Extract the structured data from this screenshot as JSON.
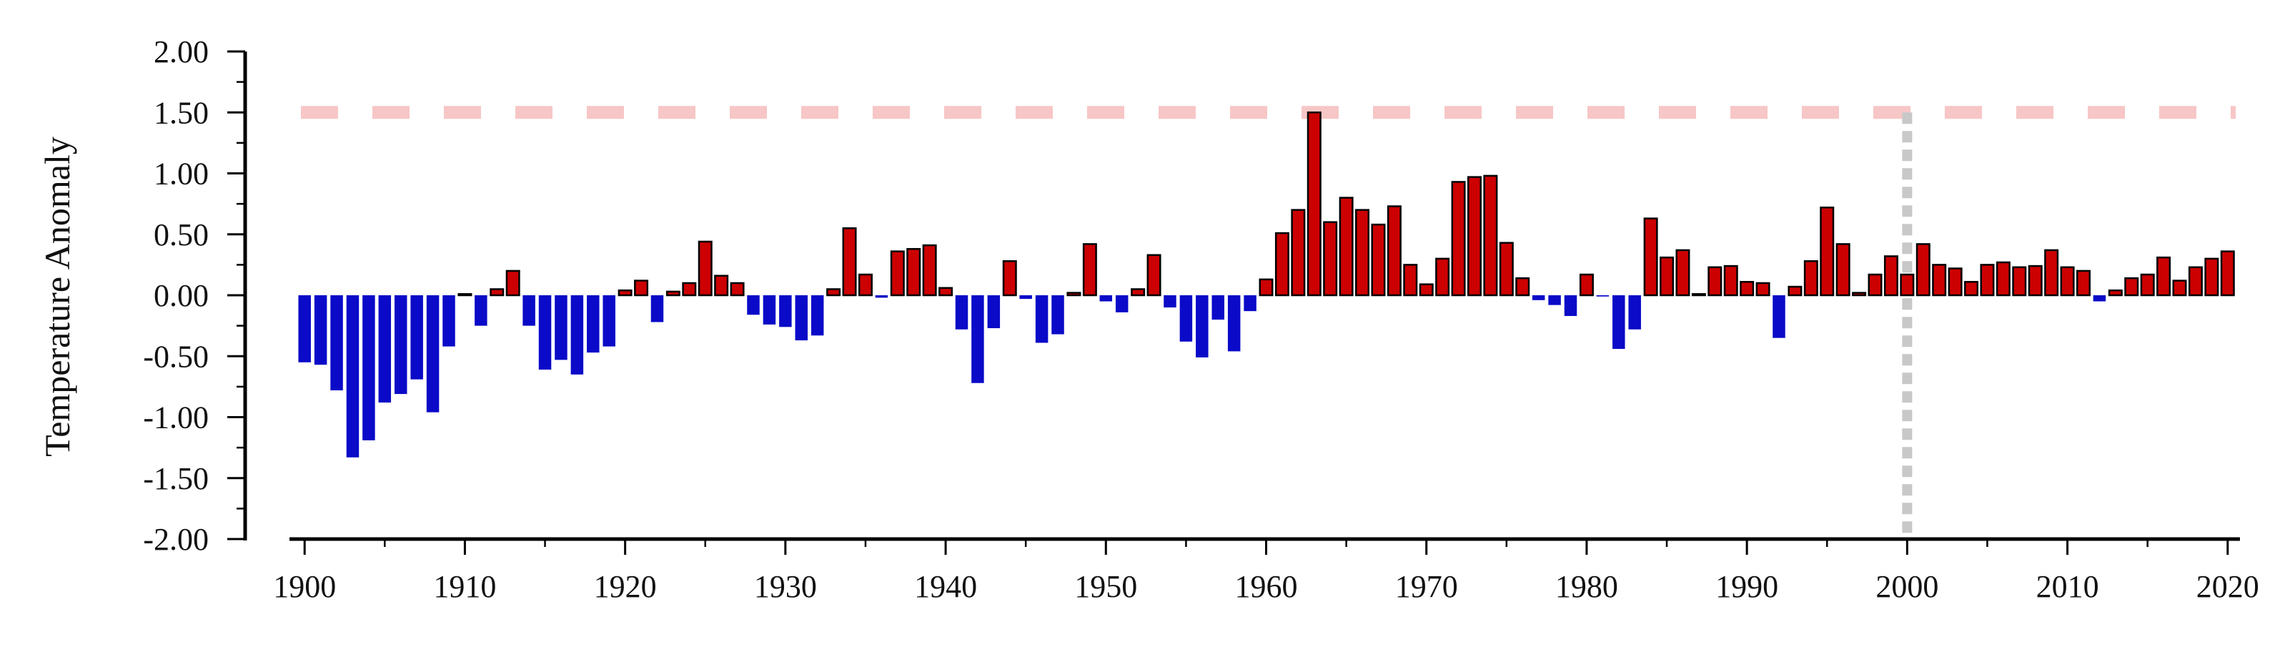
{
  "chart_data": {
    "type": "bar",
    "ylabel": "Temperature Anomaly",
    "xlabel": "",
    "title": "",
    "ylim": [
      -2.0,
      2.0
    ],
    "xlim": [
      1899.5,
      2020.5
    ],
    "y_ticks": [
      "2.00",
      "1.50",
      "1.00",
      "0.50",
      "0.00",
      "-0.50",
      "-1.00",
      "-1.50",
      "-2.00"
    ],
    "y_tick_values": [
      2.0,
      1.5,
      1.0,
      0.5,
      0.0,
      -0.5,
      -1.0,
      -1.5,
      -2.0
    ],
    "x_ticks": [
      "1900",
      "1910",
      "1920",
      "1930",
      "1940",
      "1950",
      "1960",
      "1970",
      "1980",
      "1990",
      "2000",
      "2010",
      "2020"
    ],
    "x_tick_values": [
      1900,
      1910,
      1920,
      1930,
      1940,
      1950,
      1960,
      1970,
      1980,
      1990,
      2000,
      2010,
      2020
    ],
    "grid": false,
    "legend": "none",
    "colors": {
      "positive": "#cc0000",
      "negative": "#0a0ac8",
      "bar_edge": "#000000",
      "threshold_line": "#f7c6c6",
      "marker_line": "#c8c8c8"
    },
    "reference_lines": [
      {
        "orientation": "horizontal",
        "value": 1.5,
        "style": "dashed",
        "color": "#f7c6c6"
      },
      {
        "orientation": "vertical",
        "value": 2000,
        "style": "dotted",
        "color": "#c8c8c8"
      }
    ],
    "x": [
      1900,
      1901,
      1902,
      1903,
      1904,
      1905,
      1906,
      1907,
      1908,
      1909,
      1910,
      1911,
      1912,
      1913,
      1914,
      1915,
      1916,
      1917,
      1918,
      1919,
      1920,
      1921,
      1922,
      1923,
      1924,
      1925,
      1926,
      1927,
      1928,
      1929,
      1930,
      1931,
      1932,
      1933,
      1934,
      1935,
      1936,
      1937,
      1938,
      1939,
      1940,
      1941,
      1942,
      1943,
      1944,
      1945,
      1946,
      1947,
      1948,
      1949,
      1950,
      1951,
      1952,
      1953,
      1954,
      1955,
      1956,
      1957,
      1958,
      1959,
      1960,
      1961,
      1962,
      1963,
      1964,
      1965,
      1966,
      1967,
      1968,
      1969,
      1970,
      1971,
      1972,
      1973,
      1974,
      1975,
      1976,
      1977,
      1978,
      1979,
      1980,
      1981,
      1982,
      1983,
      1984,
      1985,
      1986,
      1987,
      1988,
      1989,
      1990,
      1991,
      1992,
      1993,
      1994,
      1995,
      1996,
      1997,
      1998,
      1999,
      2000,
      2001,
      2002,
      2003,
      2004,
      2005,
      2006,
      2007,
      2008,
      2009,
      2010,
      2011,
      2012,
      2013,
      2014,
      2015,
      2016,
      2017,
      2018,
      2019,
      2020
    ],
    "values": [
      -0.55,
      -0.57,
      -0.78,
      -1.33,
      -1.19,
      -0.88,
      -0.81,
      -0.69,
      -0.96,
      -0.42,
      0.01,
      -0.25,
      0.05,
      0.2,
      -0.25,
      -0.61,
      -0.53,
      -0.65,
      -0.47,
      -0.42,
      0.04,
      0.12,
      -0.22,
      0.03,
      0.1,
      0.44,
      0.16,
      0.1,
      -0.16,
      -0.24,
      -0.26,
      -0.37,
      -0.33,
      0.05,
      0.55,
      0.17,
      -0.02,
      0.36,
      0.38,
      0.41,
      0.06,
      -0.28,
      -0.72,
      -0.27,
      0.28,
      -0.03,
      -0.39,
      -0.32,
      0.02,
      0.42,
      -0.05,
      -0.14,
      0.05,
      0.33,
      -0.1,
      -0.38,
      -0.51,
      -0.2,
      -0.46,
      -0.13,
      0.13,
      0.51,
      0.7,
      1.5,
      0.6,
      0.8,
      0.7,
      0.58,
      0.73,
      0.25,
      0.09,
      0.3,
      0.93,
      0.97,
      0.98,
      0.43,
      0.14,
      -0.04,
      -0.08,
      -0.17,
      0.17,
      -0.01,
      -0.44,
      -0.28,
      0.63,
      0.31,
      0.37,
      0.01,
      0.23,
      0.24,
      0.11,
      0.1,
      -0.35,
      0.07,
      0.28,
      0.72,
      0.42,
      0.02,
      0.17,
      0.32,
      0.17,
      0.42,
      0.25,
      0.22,
      0.11,
      0.25,
      0.27,
      0.23,
      0.24,
      0.37,
      0.23,
      0.2,
      -0.05,
      0.04,
      0.14,
      0.17,
      0.31,
      0.12,
      0.23,
      0.3,
      0.36
    ]
  }
}
